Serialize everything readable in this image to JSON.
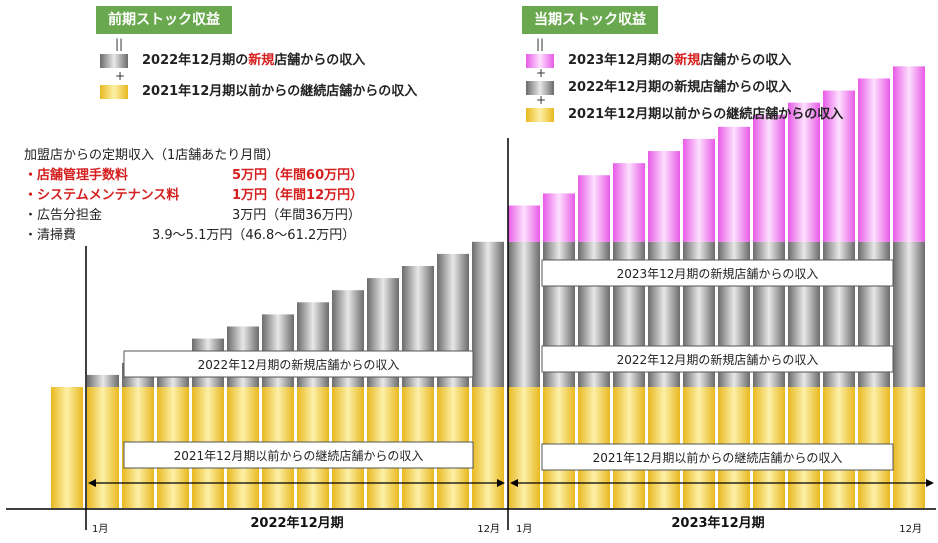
{
  "left_header": "前期ストック収益",
  "right_header": "当期ストック収益",
  "op_equals": "||",
  "op_plus": "+",
  "left_legend": [
    {
      "pre": "2022年12月期の",
      "hl": "新規",
      "post": "店舗からの収入",
      "color_id": "gray"
    },
    {
      "pre": "2021年12月期以前からの継続店舗からの収入",
      "hl": "",
      "post": "",
      "color_id": "gold"
    }
  ],
  "right_legend": [
    {
      "pre": "2023年12月期の",
      "hl": "新規",
      "post": "店舗からの収入",
      "color_id": "pink"
    },
    {
      "pre": "2022年12月期の新規店舗からの収入",
      "hl": "",
      "post": "",
      "color_id": "gray"
    },
    {
      "pre": "2021年12月期以前からの継続店舗からの収入",
      "hl": "",
      "post": "",
      "color_id": "gold"
    }
  ],
  "info": {
    "title": "加盟店からの定期収入（1店舗あたり月間）",
    "items": [
      {
        "label": "・店舗管理手数料",
        "amount": "5万円（年間60万円）",
        "red": true
      },
      {
        "label": "・システムメンテナンス料",
        "amount": "1万円（年間12万円）",
        "red": true
      },
      {
        "label": "・広告分担金",
        "amount": "3万円（年間36万円）",
        "red": false
      },
      {
        "label": "・清掃費",
        "amount": "3.9〜5.1万円（46.8〜61.2万円）",
        "red": false
      }
    ]
  },
  "colors": {
    "gold": "#e8b820",
    "gold_light": "#fdf0a6",
    "gray": "#6b6b6b",
    "gray_light": "#e8e8e8",
    "pink": "#e85ae8",
    "pink_light": "#fde0fd",
    "header_green": "#6aa84f",
    "highlight_red": "#d61f1f"
  },
  "chart_data": {
    "type": "bar",
    "stacked": true,
    "axis_labels_shown": false,
    "periods": [
      {
        "label": "2022年12月期",
        "start_label": "1月",
        "end_label": "12月",
        "prior_bar": {
          "continuing": 1.0,
          "new_2022": 0,
          "new_2023": 0
        }
      },
      {
        "label": "2023年12月期",
        "start_label": "1月",
        "end_label": "12月"
      }
    ],
    "series": [
      {
        "name": "2021年12月期以前からの継続店舗からの収入",
        "color_id": "gold",
        "values": [
          1,
          1,
          1,
          1,
          1,
          1,
          1,
          1,
          1,
          1,
          1,
          1,
          1,
          1,
          1,
          1,
          1,
          1,
          1,
          1,
          1,
          1,
          1,
          1
        ]
      },
      {
        "name": "2022年12月期の新規店舗からの収入",
        "color_id": "gray",
        "values": [
          0.1,
          0.2,
          0.3,
          0.4,
          0.5,
          0.6,
          0.7,
          0.8,
          0.9,
          1.0,
          1.1,
          1.2,
          1.2,
          1.2,
          1.2,
          1.2,
          1.2,
          1.2,
          1.2,
          1.2,
          1.2,
          1.2,
          1.2,
          1.2
        ]
      },
      {
        "name": "2023年12月期の新規店舗からの収入",
        "color_id": "pink",
        "values": [
          0,
          0,
          0,
          0,
          0,
          0,
          0,
          0,
          0,
          0,
          0,
          0,
          0.3,
          0.4,
          0.55,
          0.65,
          0.75,
          0.85,
          0.95,
          1.05,
          1.15,
          1.25,
          1.35,
          1.45
        ]
      }
    ],
    "in_chart_labels": [
      {
        "text": "2022年12月期の新規店舗からの収入",
        "period": 0,
        "series": 1
      },
      {
        "text": "2021年12月期以前からの継続店舗からの収入",
        "period": 0,
        "series": 0
      },
      {
        "text": "2023年12月期の新規店舗からの収入",
        "period": 1,
        "series": 2
      },
      {
        "text": "2022年12月期の新規店舗からの収入",
        "period": 1,
        "series": 1
      },
      {
        "text": "2021年12月期以前からの継続店舗からの収入",
        "period": 1,
        "series": 0
      }
    ]
  }
}
